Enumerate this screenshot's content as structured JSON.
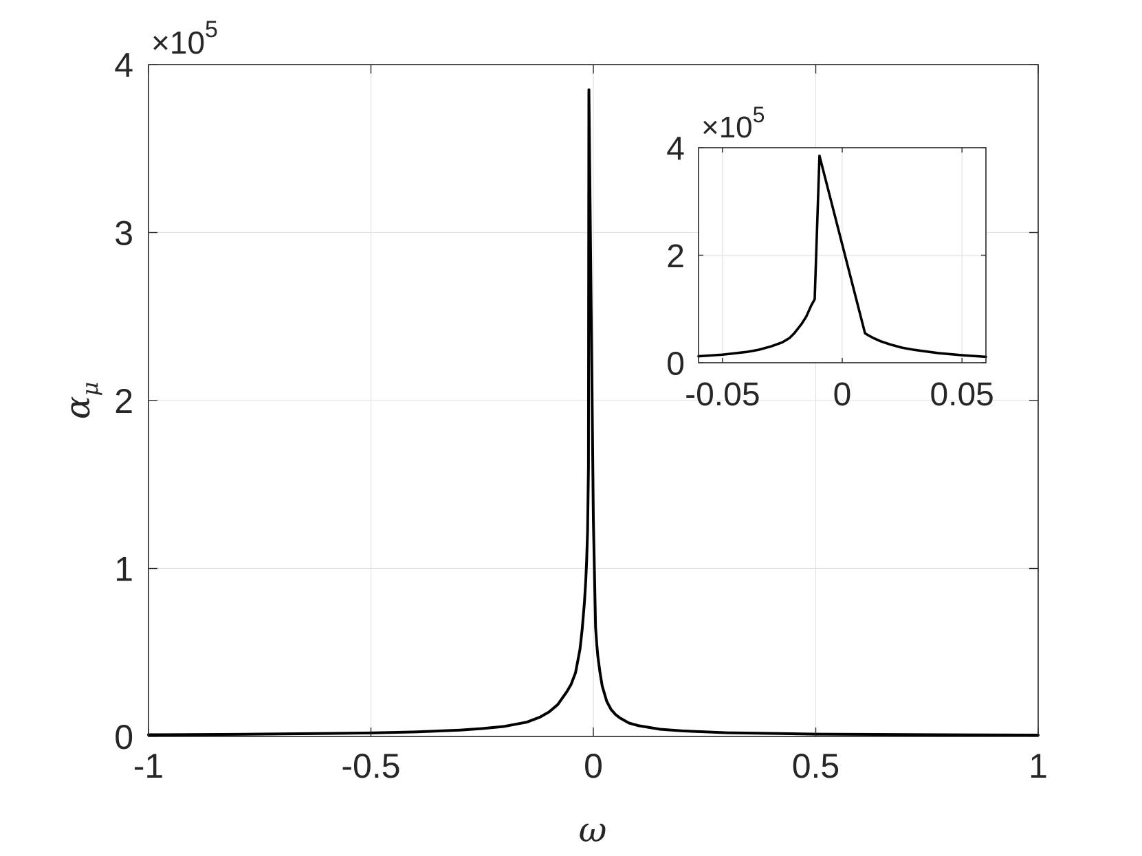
{
  "chart_data": [
    {
      "type": "line",
      "role": "main",
      "xlabel": "ω",
      "ylabel_base": "α",
      "ylabel_sub": "μ",
      "xlim": [
        -1,
        1
      ],
      "ylim": [
        0,
        400000
      ],
      "x_ticks": [
        -1,
        -0.5,
        0,
        0.5,
        1
      ],
      "x_tick_labels": [
        "-1",
        "-0.5",
        "0",
        "0.5",
        "1"
      ],
      "y_ticks": [
        0,
        100000,
        200000,
        300000,
        400000
      ],
      "y_tick_labels": [
        "0",
        "1",
        "2",
        "3",
        "4"
      ],
      "y_exponent": {
        "times": "×10",
        "power": "5"
      },
      "grid": true,
      "line_color": "#000000",
      "series": [
        {
          "x": [
            -1.0,
            -0.8,
            -0.6,
            -0.5,
            -0.4,
            -0.3,
            -0.25,
            -0.2,
            -0.15,
            -0.12,
            -0.1,
            -0.08,
            -0.06,
            -0.05,
            -0.04,
            -0.03,
            -0.025,
            -0.02,
            -0.017,
            -0.015,
            -0.013,
            -0.011,
            -0.01,
            -0.005,
            0.0,
            0.005,
            0.008,
            0.01,
            0.015,
            0.02,
            0.03,
            0.04,
            0.05,
            0.06,
            0.08,
            0.1,
            0.15,
            0.2,
            0.3,
            0.5,
            0.7,
            1.0
          ],
          "y": [
            1000,
            1300,
            1800,
            2100,
            2700,
            3800,
            4700,
            6000,
            8500,
            11500,
            14500,
            19000,
            26500,
            31000,
            38000,
            52000,
            64000,
            80000,
            93000,
            105000,
            122000,
            160000,
            385000,
            257000,
            130000,
            65000,
            54000,
            48000,
            38000,
            30000,
            21000,
            16000,
            13000,
            11000,
            8000,
            6500,
            4300,
            3300,
            2200,
            1400,
            1100,
            800
          ]
        }
      ]
    },
    {
      "type": "line",
      "role": "inset",
      "xlim": [
        -0.06,
        0.06
      ],
      "ylim": [
        0,
        400000
      ],
      "x_ticks": [
        -0.05,
        0,
        0.05
      ],
      "x_tick_labels": [
        "-0.05",
        "0",
        "0.05"
      ],
      "y_ticks": [
        0,
        200000,
        400000
      ],
      "y_tick_labels": [
        "0",
        "2",
        "4"
      ],
      "y_exponent": {
        "times": "×10",
        "power": "5"
      },
      "grid": true,
      "line_color": "#000000",
      "series": [
        {
          "x": [
            -0.06,
            -0.05,
            -0.04,
            -0.035,
            -0.03,
            -0.025,
            -0.022,
            -0.02,
            -0.017,
            -0.015,
            -0.013,
            -0.0115,
            -0.0095,
            0.0,
            0.0095,
            0.0105,
            0.013,
            0.016,
            0.02,
            0.025,
            0.03,
            0.035,
            0.04,
            0.05,
            0.06
          ],
          "y": [
            12000,
            15000,
            20000,
            24000,
            30000,
            38000,
            46000,
            55000,
            72000,
            86000,
            106000,
            118000,
            385000,
            220000,
            55000,
            52000,
            46000,
            40000,
            34000,
            28000,
            24000,
            21000,
            18000,
            14000,
            11000
          ]
        }
      ]
    }
  ]
}
